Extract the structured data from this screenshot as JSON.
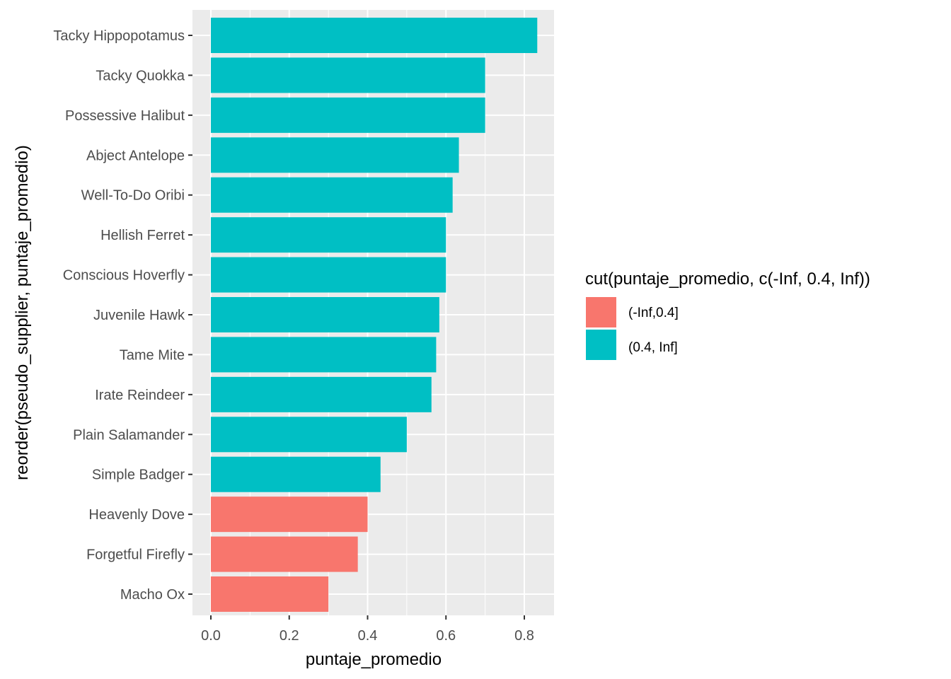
{
  "chart_data": {
    "type": "bar",
    "orientation": "horizontal",
    "categories": [
      "Tacky Hippopotamus",
      "Tacky Quokka",
      "Possessive Halibut",
      "Abject Antelope",
      "Well-To-Do Oribi",
      "Hellish Ferret",
      "Conscious Hoverfly",
      "Juvenile Hawk",
      "Tame Mite",
      "Irate Reindeer",
      "Plain Salamander",
      "Simple Badger",
      "Heavenly Dove",
      "Forgetful Firefly",
      "Macho Ox"
    ],
    "values": [
      0.833,
      0.7,
      0.7,
      0.633,
      0.617,
      0.6,
      0.6,
      0.583,
      0.575,
      0.563,
      0.5,
      0.433,
      0.4,
      0.375,
      0.3
    ],
    "groups": [
      "(0.4, Inf]",
      "(0.4, Inf]",
      "(0.4, Inf]",
      "(0.4, Inf]",
      "(0.4, Inf]",
      "(0.4, Inf]",
      "(0.4, Inf]",
      "(0.4, Inf]",
      "(0.4, Inf]",
      "(0.4, Inf]",
      "(0.4, Inf]",
      "(0.4, Inf]",
      "(-Inf,0.4]",
      "(-Inf,0.4]",
      "(-Inf,0.4]"
    ],
    "xlabel": "puntaje_promedio",
    "ylabel": "reorder(pseudo_supplier, puntaje_promedio)",
    "xlim": [
      -0.045,
      0.875
    ],
    "xticks": [
      0.0,
      0.2,
      0.4,
      0.6,
      0.8
    ],
    "xtick_labels": [
      "0.0",
      "0.2",
      "0.4",
      "0.6",
      "0.8"
    ],
    "grid": true,
    "legend": {
      "title": "cut(puntaje_promedio, c(-Inf, 0.4, Inf))",
      "placement": "right",
      "entries": [
        {
          "label": "(-Inf,0.4]",
          "color": "#F8766D"
        },
        {
          "label": "(0.4, Inf]",
          "color": "#00BFC4"
        }
      ]
    },
    "colors": {
      "(-Inf,0.4]": "#F8766D",
      "(0.4, Inf]": "#00BFC4",
      "panel_background": "#EBEBEB",
      "grid": "#FFFFFF"
    }
  }
}
